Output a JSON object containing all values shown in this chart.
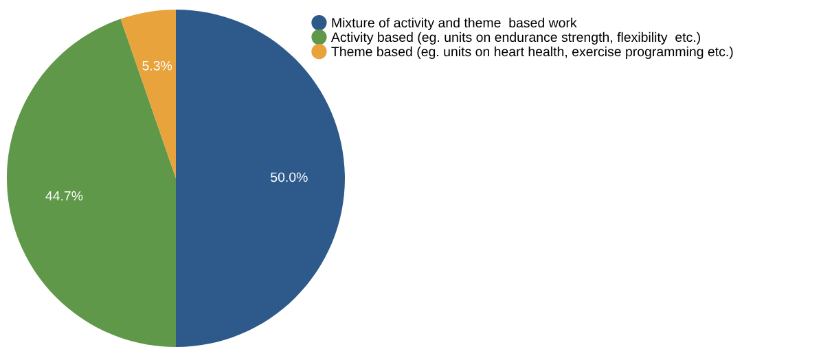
{
  "chart_data": {
    "type": "pie",
    "categories": [
      "Mixture of activity and theme  based work",
      "Activity based (eg. units on endurance strength, flexibility  etc.)",
      "Theme based (eg. units on heart health, exercise programming etc.)"
    ],
    "values": [
      50.0,
      44.7,
      5.3
    ],
    "colors": [
      "#2e5a8b",
      "#5f9848",
      "#e8a33d"
    ],
    "value_labels": [
      "50.0%",
      "44.7%",
      "5.3%"
    ],
    "legend": "top right"
  }
}
